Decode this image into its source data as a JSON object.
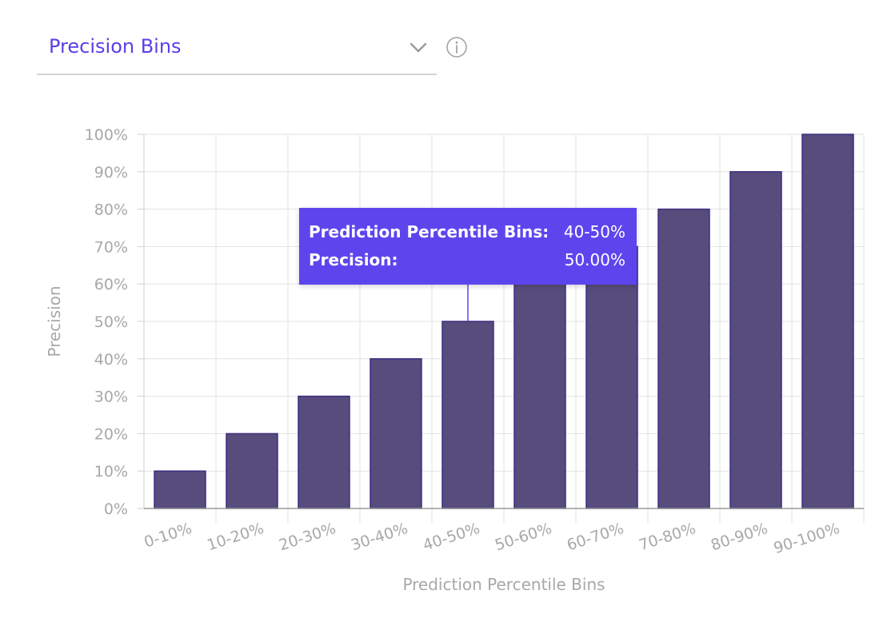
{
  "selector": {
    "value": "Precision Bins",
    "chevron_icon": "chevron-down-icon",
    "info_icon": "info-icon"
  },
  "colors": {
    "accent": "#5b3ee8",
    "bar_fill": "#574c7c",
    "bar_stroke": "#3d2f80",
    "tooltip_bg": "#5d45ee",
    "grid": "#e2e2e2",
    "axis_text": "#a8a8a8"
  },
  "tooltip": {
    "label_1": "Prediction Percentile Bins:",
    "value_1": "40-50%",
    "label_2": "Precision:",
    "value_2": "50.00%"
  },
  "chart_data": {
    "type": "bar",
    "categories": [
      "0-10%",
      "10-20%",
      "20-30%",
      "30-40%",
      "40-50%",
      "50-60%",
      "60-70%",
      "70-80%",
      "80-90%",
      "90-100%"
    ],
    "values": [
      10,
      20,
      30,
      40,
      50,
      60,
      70,
      80,
      90,
      100
    ],
    "xlabel": "Prediction Percentile Bins",
    "ylabel": "Precision",
    "ylim": [
      0,
      100
    ],
    "yticks": [
      "0%",
      "10%",
      "20%",
      "30%",
      "40%",
      "50%",
      "60%",
      "70%",
      "80%",
      "90%",
      "100%"
    ],
    "grid": true,
    "highlighted_category": "40-50%"
  }
}
